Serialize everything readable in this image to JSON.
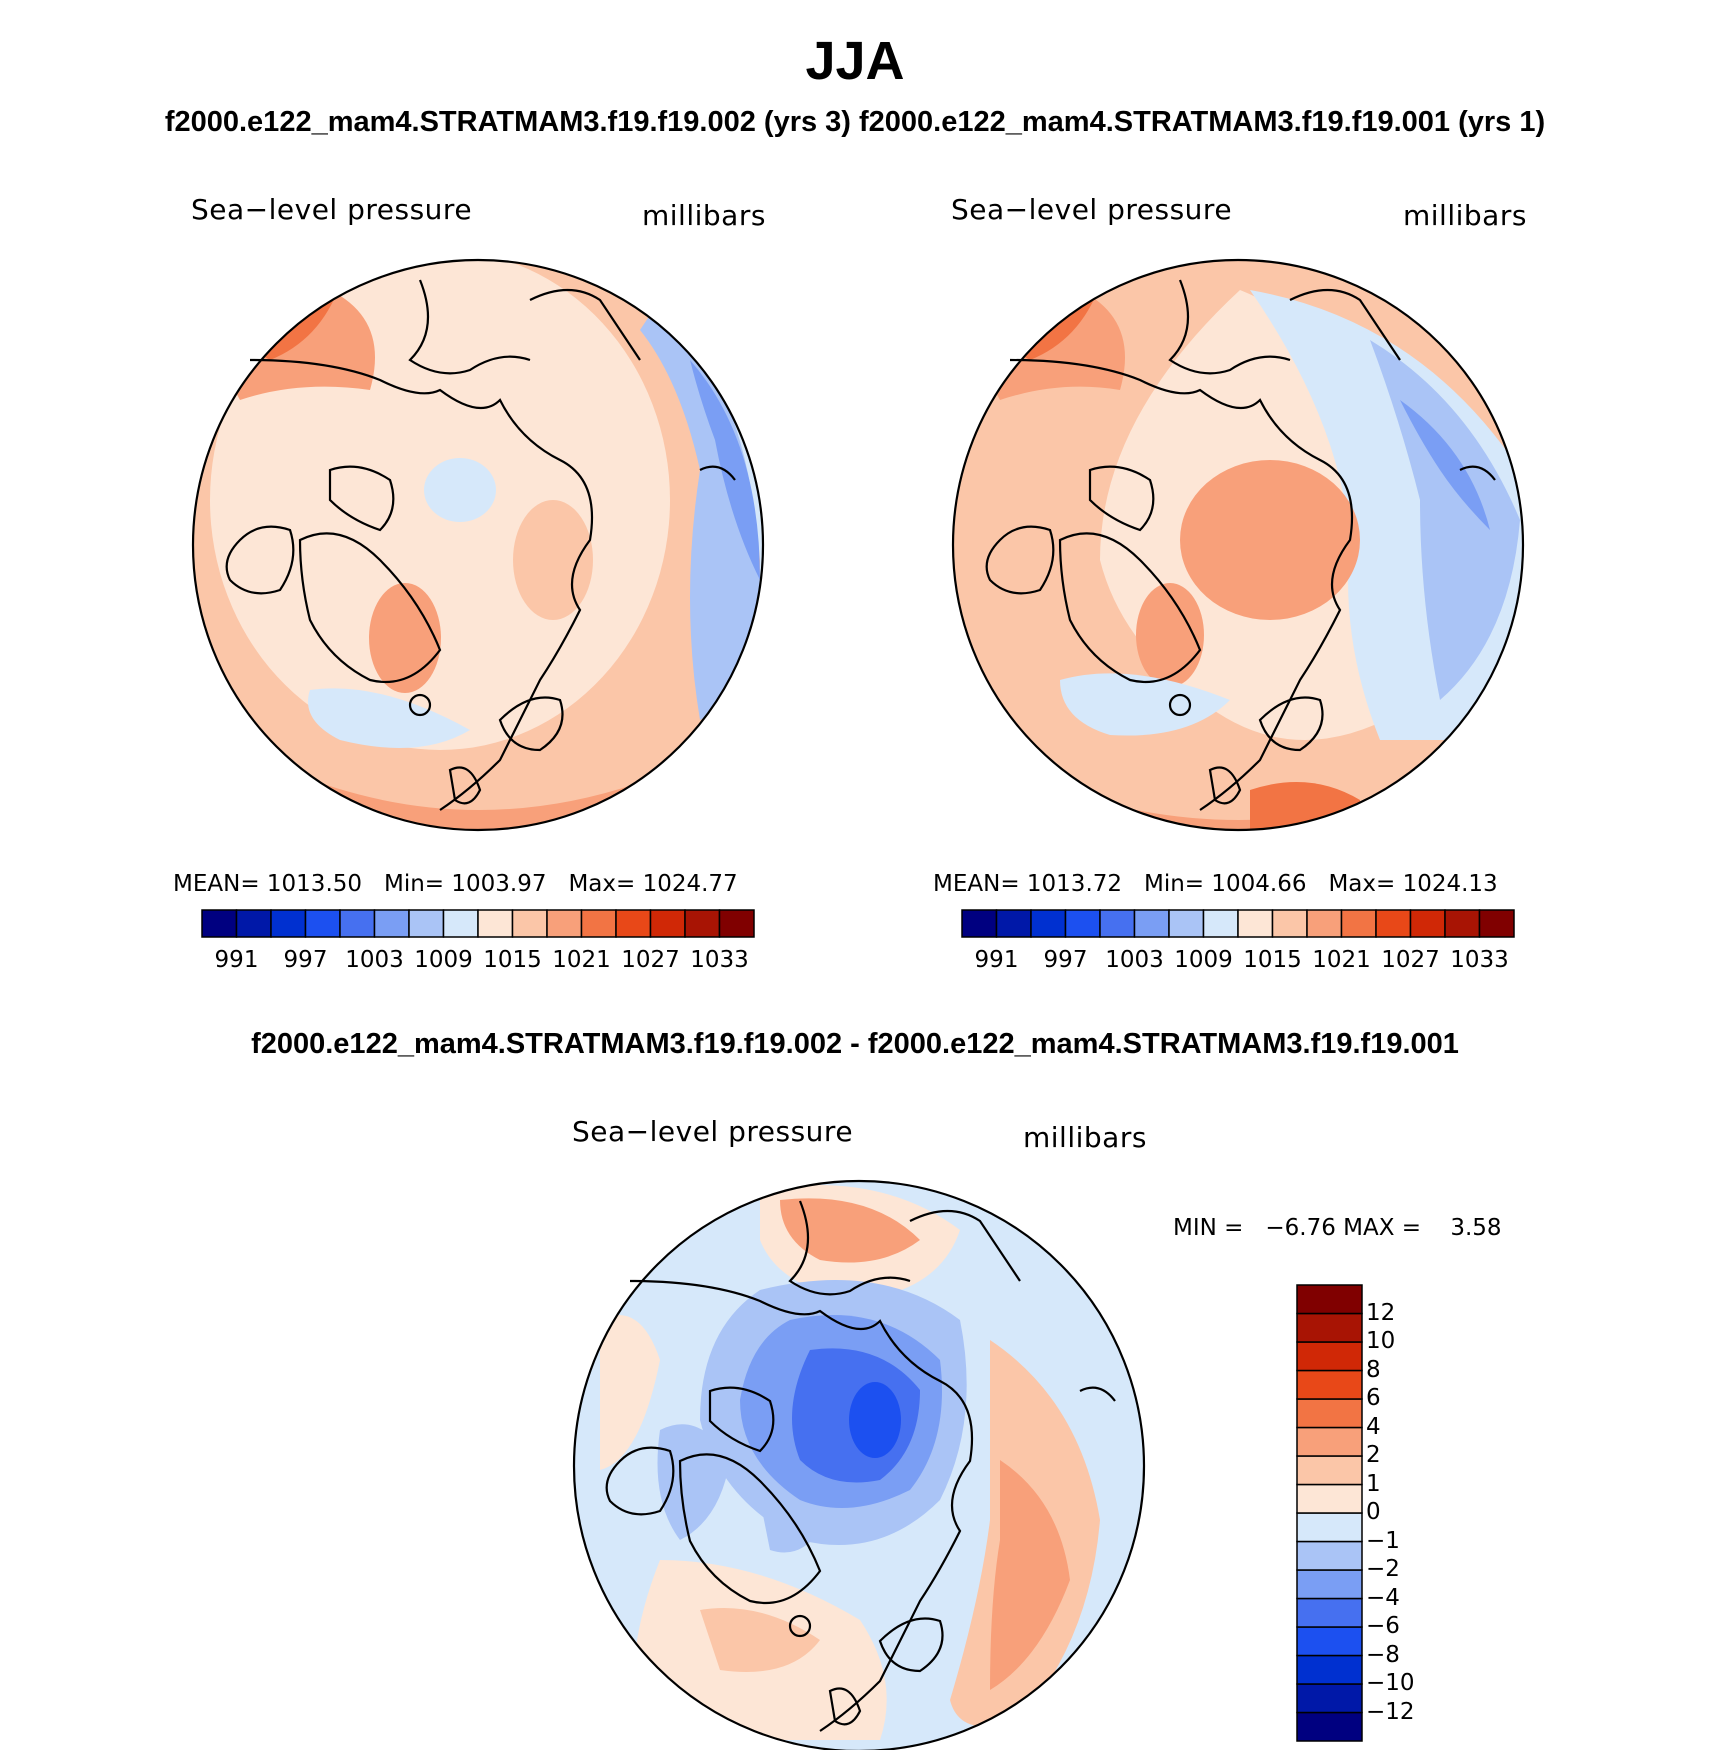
{
  "figure": {
    "season": "JJA",
    "header_line": "f2000.e122_mam4.STRATMAM3.f19.f19.002 (yrs 3)  f2000.e122_mam4.STRATMAM3.f19.f19.001 (yrs 1)",
    "diff_title": "f2000.e122_mam4.STRATMAM3.f19.f19.002 - f2000.e122_mam4.STRATMAM3.f19.f19.001"
  },
  "panels": [
    {
      "variable": "Sea−level pressure",
      "units": "millibars",
      "mean_label": "MEAN=",
      "mean": "1013.50",
      "min_label": "Min=",
      "min": "1003.97",
      "max_label": "Max=",
      "max": "1024.77"
    },
    {
      "variable": "Sea−level pressure",
      "units": "millibars",
      "mean_label": "MEAN=",
      "mean": "1013.72",
      "min_label": "Min=",
      "min": "1004.66",
      "max_label": "Max=",
      "max": "1024.13"
    },
    {
      "variable": "Sea−level pressure",
      "units": "millibars",
      "min_label": "MIN =",
      "min": "−6.76",
      "max_label": "MAX =",
      "max": "3.58"
    }
  ],
  "colorbar_abs": {
    "colors": [
      "#000080",
      "#0018a8",
      "#0030d0",
      "#1c50f0",
      "#4670f0",
      "#7a9ef4",
      "#aac4f6",
      "#d6e8fa",
      "#fde6d6",
      "#fbc6a8",
      "#f8a07a",
      "#f27444",
      "#e84818",
      "#d02806",
      "#a81404",
      "#800000"
    ],
    "tick_labels": [
      "991",
      "997",
      "1003",
      "1009",
      "1015",
      "1021",
      "1027",
      "1033"
    ]
  },
  "colorbar_diff": {
    "colors": [
      "#000080",
      "#0018a8",
      "#0030d0",
      "#1c50f0",
      "#4670f0",
      "#7a9ef4",
      "#aac4f6",
      "#d6e8fa",
      "#fde6d6",
      "#fbc6a8",
      "#f8a07a",
      "#f27444",
      "#e84818",
      "#d02806",
      "#a81404",
      "#800000"
    ],
    "tick_labels": [
      "−12",
      "−10",
      "−8",
      "−6",
      "−4",
      "−2",
      "−1",
      "0",
      "1",
      "2",
      "4",
      "6",
      "8",
      "10",
      "12"
    ]
  }
}
